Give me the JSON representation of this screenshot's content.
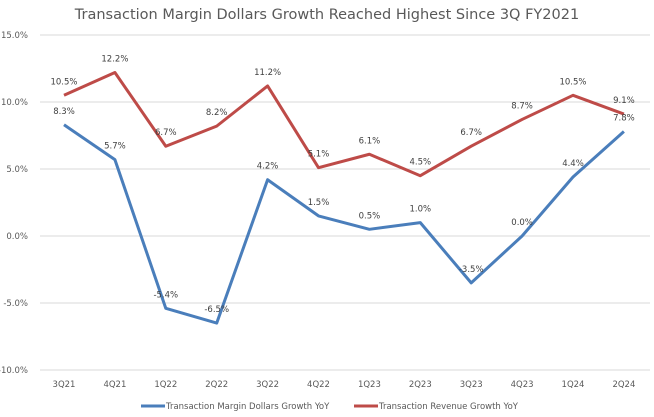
{
  "chart_data": {
    "type": "line",
    "title": "Transaction Margin Dollars Growth Reached Highest Since 3Q FY2021",
    "xlabel": "",
    "ylabel": "",
    "categories": [
      "3Q21",
      "4Q21",
      "1Q22",
      "2Q22",
      "3Q22",
      "4Q22",
      "1Q23",
      "2Q23",
      "3Q23",
      "4Q23",
      "1Q24",
      "2Q24"
    ],
    "ylim": [
      -10.0,
      15.0
    ],
    "yticks": [
      15.0,
      10.0,
      5.0,
      0.0,
      -5.0,
      -10.0
    ],
    "ytick_labels": [
      "15.0%",
      "10.0%",
      "5.0%",
      "0.0%",
      "-5.0%",
      "-10.0%"
    ],
    "grid": true,
    "legend_position": "bottom",
    "series": [
      {
        "name": "Transaction Margin Dollars Growth YoY",
        "color": "#4a7ebb",
        "values": [
          8.3,
          5.7,
          -5.4,
          -6.5,
          4.2,
          1.5,
          0.5,
          1.0,
          -3.5,
          0.0,
          4.4,
          7.8
        ],
        "labels": [
          "8.3%",
          "5.7%",
          "-5.4%",
          "-6.5%",
          "4.2%",
          "1.5%",
          "0.5%",
          "1.0%",
          "-3.5%",
          "0.0%",
          "4.4%",
          "7.8%"
        ]
      },
      {
        "name": "Transaction Revenue Growth YoY",
        "color": "#be4b48",
        "values": [
          10.5,
          12.2,
          6.7,
          8.2,
          11.2,
          5.1,
          6.1,
          4.5,
          6.7,
          8.7,
          10.5,
          9.1
        ],
        "labels": [
          "10.5%",
          "12.2%",
          "6.7%",
          "8.2%",
          "11.2%",
          "5.1%",
          "6.1%",
          "4.5%",
          "6.7%",
          "8.7%",
          "10.5%",
          "9.1%"
        ]
      }
    ]
  }
}
